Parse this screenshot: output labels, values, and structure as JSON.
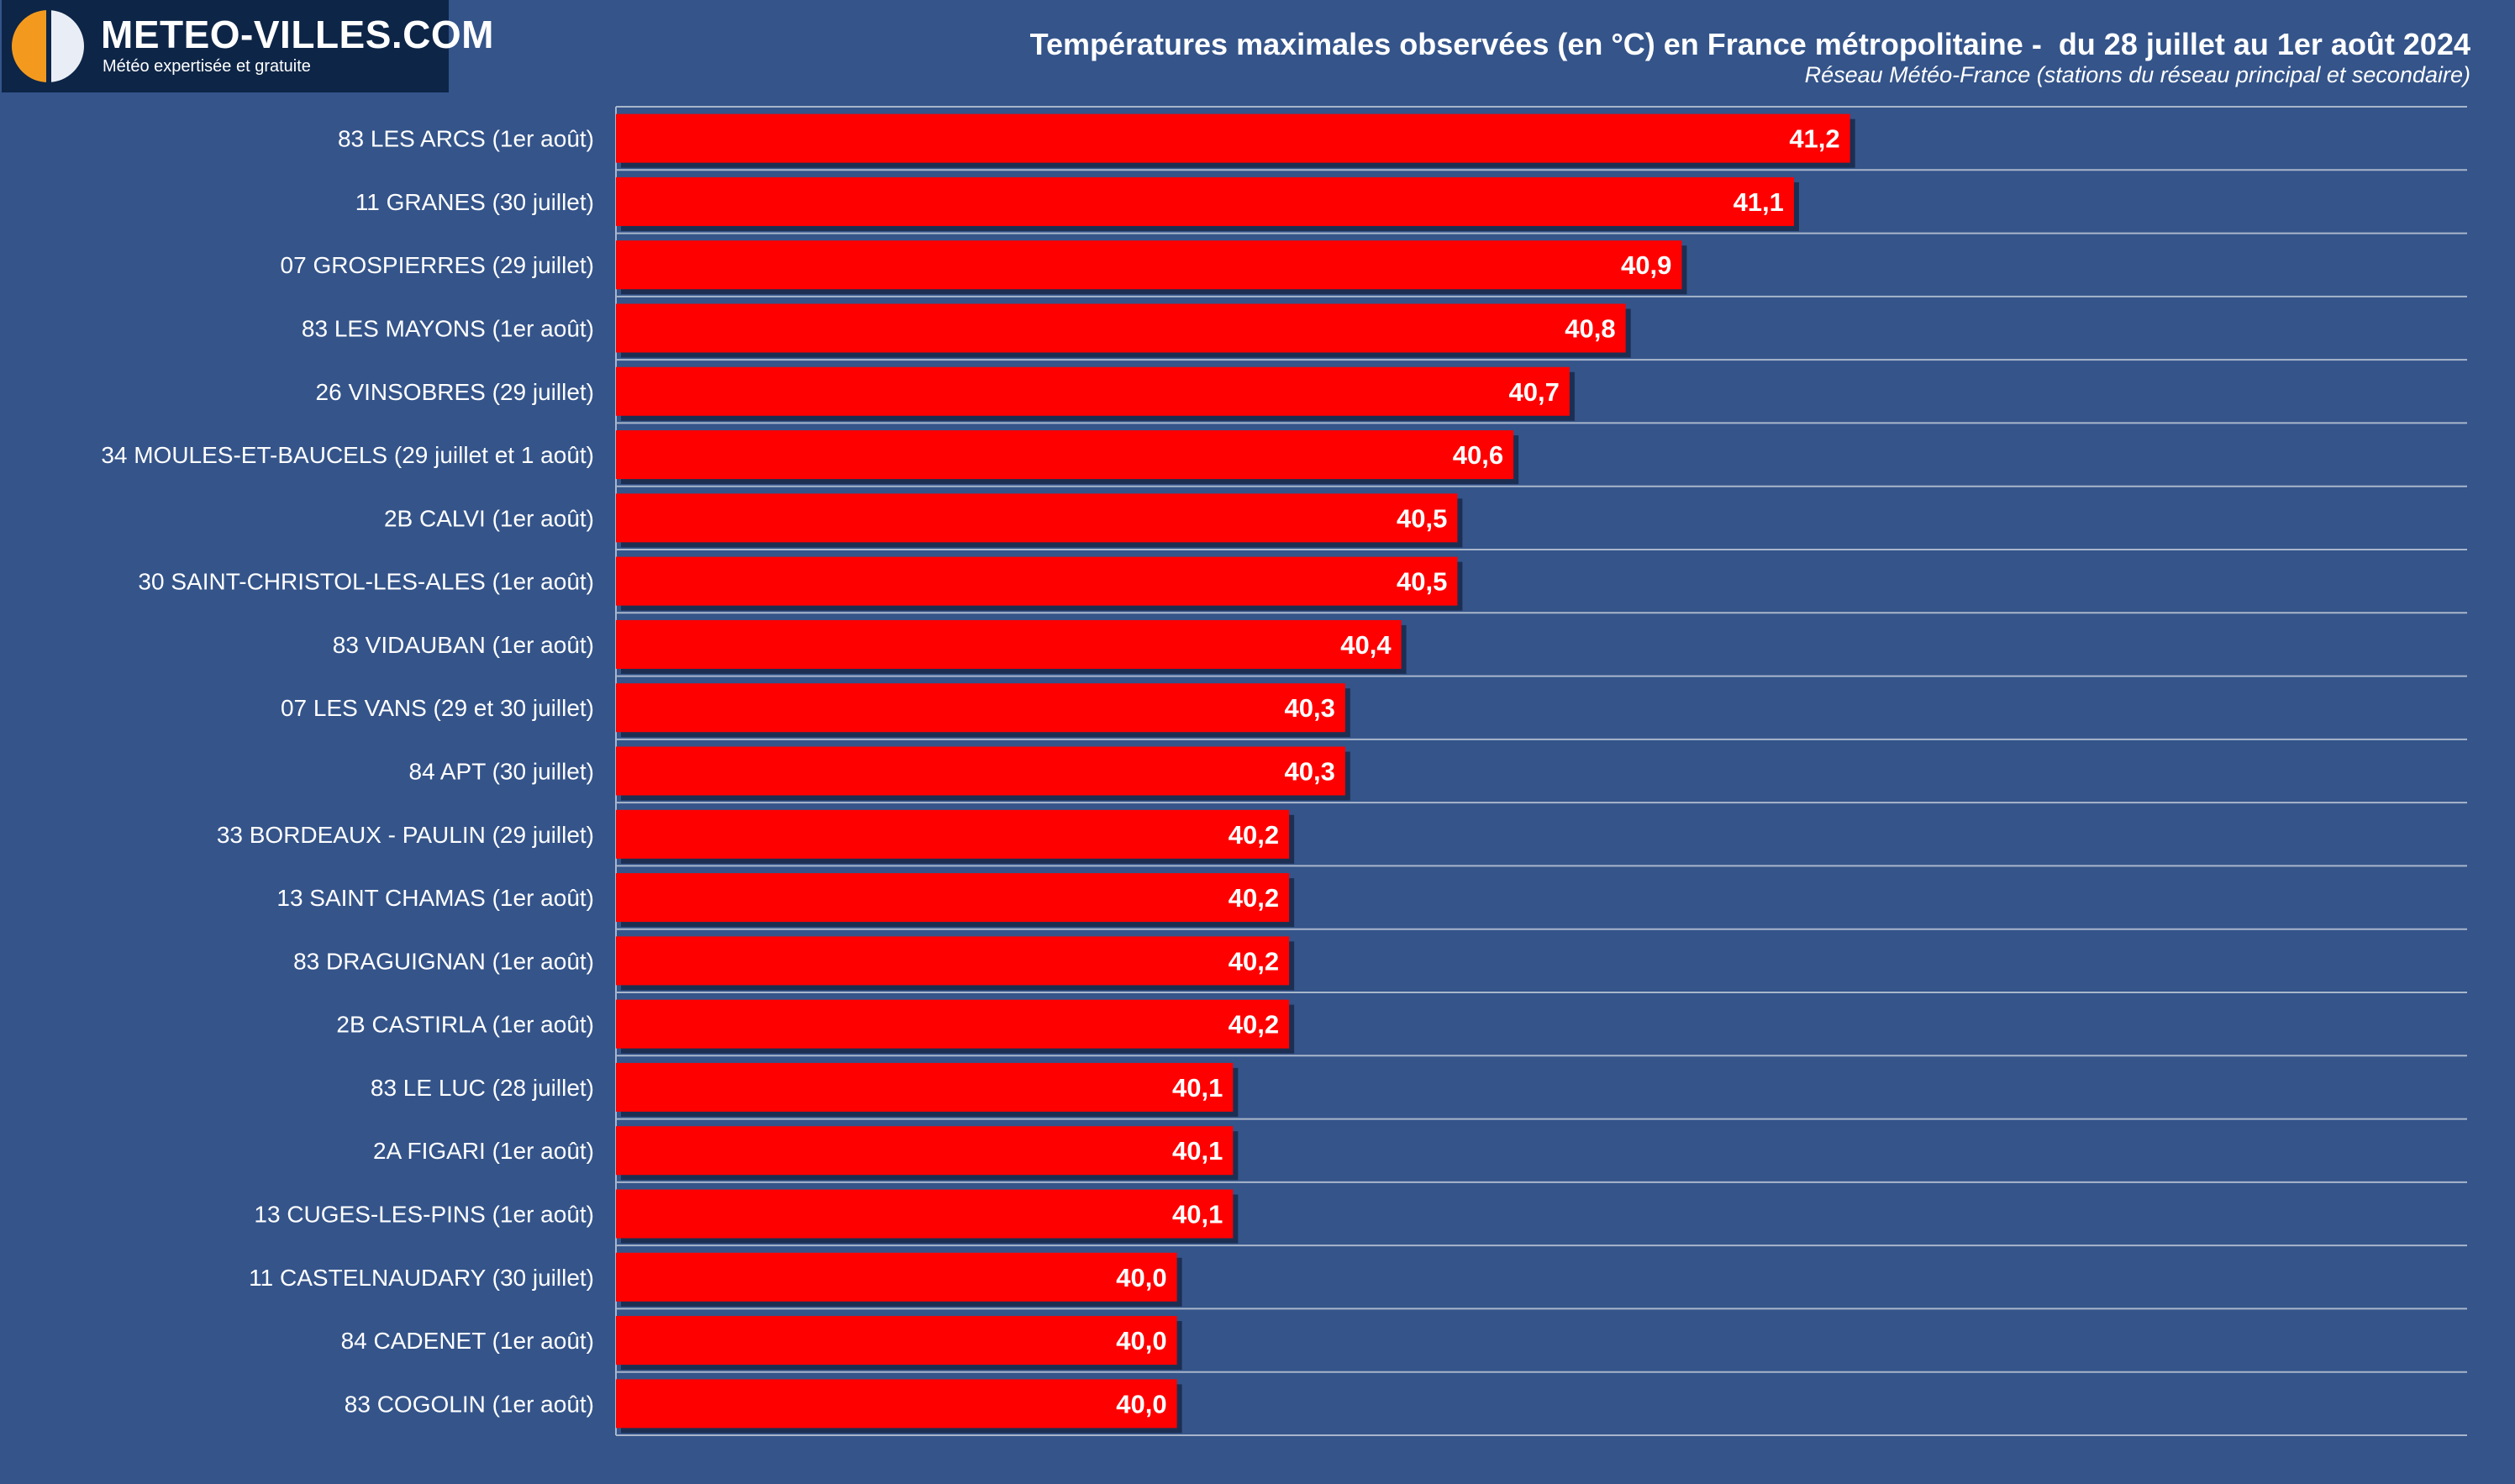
{
  "logo": {
    "name": "METEO-VILLES.COM",
    "tagline": "Météo expertisée et gratuite"
  },
  "chart_data": {
    "type": "bar",
    "orientation": "horizontal",
    "title": "Températures maximales observées (en °C) en France métropolitaine -  du 28 juillet au 1er août 2024",
    "subtitle": "Réseau Météo-France (stations du réseau principal et secondaire)",
    "categories": [
      "83 LES ARCS (1er août)",
      "11 GRANES (30 juillet)",
      "07 GROSPIERRES (29 juillet)",
      "83 LES MAYONS (1er août)",
      "26 VINSOBRES (29 juillet)",
      "34 MOULES-ET-BAUCELS (29 juillet et 1 août)",
      "2B CALVI (1er août)",
      "30 SAINT-CHRISTOL-LES-ALES (1er août)",
      "83 VIDAUBAN (1er août)",
      "07 LES VANS (29 et 30 juillet)",
      "84 APT (30 juillet)",
      "33 BORDEAUX - PAULIN (29 juillet)",
      "13 SAINT CHAMAS (1er août)",
      "83 DRAGUIGNAN (1er août)",
      "2B CASTIRLA (1er août)",
      "83 LE LUC (28 juillet)",
      "2A FIGARI (1er août)",
      "13 CUGES-LES-PINS (1er août)",
      "11 CASTELNAUDARY (30 juillet)",
      "84 CADENET (1er août)",
      "83 COGOLIN (1er août)"
    ],
    "values": [
      41.2,
      41.1,
      40.9,
      40.8,
      40.7,
      40.6,
      40.5,
      40.5,
      40.4,
      40.3,
      40.3,
      40.2,
      40.2,
      40.2,
      40.2,
      40.1,
      40.1,
      40.1,
      40.0,
      40.0,
      40.0
    ],
    "value_labels": [
      "41,2",
      "41,1",
      "40,9",
      "40,8",
      "40,7",
      "40,6",
      "40,5",
      "40,5",
      "40,4",
      "40,3",
      "40,3",
      "40,2",
      "40,2",
      "40,2",
      "40,2",
      "40,1",
      "40,1",
      "40,1",
      "40,0",
      "40,0",
      "40,0"
    ],
    "xlim": [
      39.0,
      42.3
    ],
    "grid": "horizontal-separators",
    "legend": "none",
    "colors": {
      "background": "#34548a",
      "bar": "#ff0000",
      "bar_shadow": "#1c2f52",
      "grid": "#a9b6cb",
      "text": "#ffffff"
    }
  }
}
